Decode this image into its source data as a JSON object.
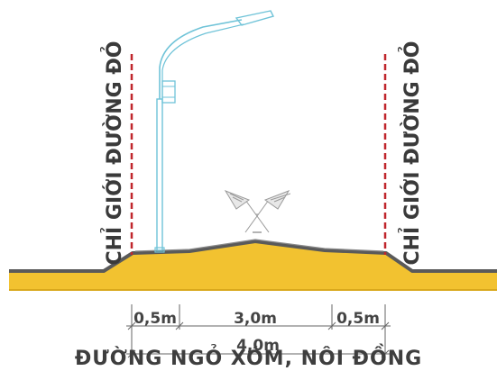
{
  "labels": {
    "left_boundary": "CHỈ GIỚI ĐƯỜNG ĐỎ",
    "right_boundary": "CHỈ GIỚI ĐƯỜNG ĐỎ"
  },
  "dimensions": {
    "left_shoulder": "0,5m",
    "carriageway": "3,0m",
    "right_shoulder": "0,5m",
    "total": "4,0m"
  },
  "caption": "ĐƯỜNG NGỎ XÓM, NÔI ĐỒNG",
  "colors": {
    "ground_fill": "#f2c230",
    "ground_outline": "#5a5a5a",
    "boundary_line": "#c0262c",
    "lamp_pole": "#6fc3d8",
    "dimension_line": "#666666"
  },
  "icons": [
    "street-lamp-icon",
    "crossed-flags-icon"
  ]
}
